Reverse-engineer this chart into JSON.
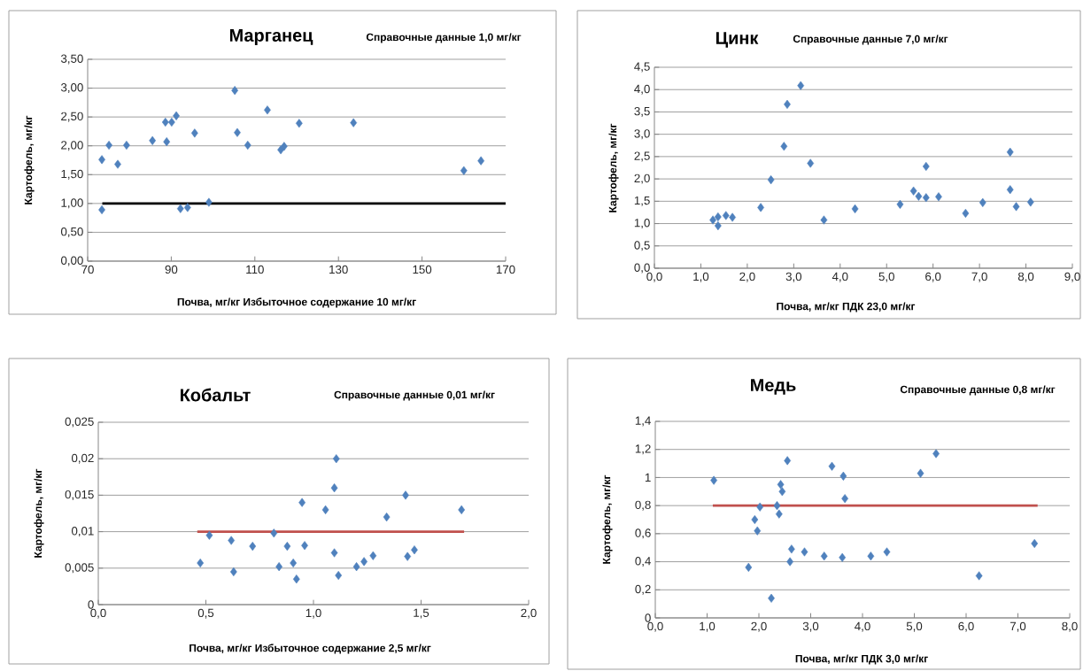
{
  "chart_data": [
    {
      "type": "scatter",
      "title": "Марганец",
      "annotations": [
        "Справочные данные 1,0 мг/кг"
      ],
      "xlabel": "Почва, мг/кг  Избыточное содержание 10 мг/кг",
      "ylabel": "Картофель, мг/кг",
      "xlim": [
        70,
        170
      ],
      "xticks": [
        70,
        90,
        110,
        130,
        150,
        170
      ],
      "ylim": [
        0,
        3.5
      ],
      "yticks": [
        {
          "value": 0,
          "label": "0,00"
        },
        {
          "value": 0.5,
          "label": "0,50"
        },
        {
          "value": 1,
          "label": "1,00"
        },
        {
          "value": 1.5,
          "label": "1,50"
        },
        {
          "value": 2,
          "label": "2,00"
        },
        {
          "value": 2.5,
          "label": "2,50"
        },
        {
          "value": 3,
          "label": "3,00"
        },
        {
          "value": 3.5,
          "label": "3,50"
        }
      ],
      "grid": "y",
      "marker": "diamond",
      "series": [
        {
          "color": "#4f81bd",
          "x": [
            73.4,
            73.4,
            75.1,
            77.2,
            79.3,
            85.5,
            88.6,
            88.9,
            90.1,
            91.2,
            92.2,
            93.9,
            95.6,
            99.0,
            105.2,
            105.8,
            108.3,
            113.0,
            116.2,
            117.0,
            120.6,
            133.6,
            160.0,
            164.1
          ],
          "values": [
            1.76,
            0.89,
            2.01,
            1.68,
            2.01,
            2.09,
            2.41,
            2.07,
            2.41,
            2.52,
            0.91,
            0.93,
            2.22,
            1.02,
            2.96,
            2.23,
            2.01,
            2.62,
            1.93,
            1.99,
            2.39,
            2.4,
            1.57,
            1.74
          ]
        },
        {
          "type": "line",
          "marker": "none",
          "color": "#000000",
          "x": [
            73.5,
            170
          ],
          "values": [
            1.0,
            1.0
          ]
        }
      ]
    },
    {
      "type": "scatter",
      "title": "Цинк",
      "annotations": [
        "Справочные данные 7,0 мг/кг"
      ],
      "xlabel": "Почва, мг/кг     ПДК 23,0  мг/кг",
      "ylabel": "Картофель, мг/кг",
      "xlim": [
        0,
        9
      ],
      "xticks": [
        {
          "value": 0,
          "label": "0,0"
        },
        {
          "value": 1,
          "label": "1,0"
        },
        {
          "value": 2,
          "label": "2,0"
        },
        {
          "value": 3,
          "label": "3,0"
        },
        {
          "value": 4,
          "label": "4,0"
        },
        {
          "value": 5,
          "label": "5,0"
        },
        {
          "value": 6,
          "label": "6,0"
        },
        {
          "value": 7,
          "label": "7,0"
        },
        {
          "value": 8,
          "label": "8,0"
        },
        {
          "value": 9,
          "label": "9,0"
        }
      ],
      "ylim": [
        0,
        4.5
      ],
      "yticks": [
        {
          "value": 0,
          "label": "0,0"
        },
        {
          "value": 0.5,
          "label": "0,5"
        },
        {
          "value": 1,
          "label": "1,0"
        },
        {
          "value": 1.5,
          "label": "1,5"
        },
        {
          "value": 2,
          "label": "2,0"
        },
        {
          "value": 2.5,
          "label": "2,5"
        },
        {
          "value": 3,
          "label": "3,0"
        },
        {
          "value": 3.5,
          "label": "3,5"
        },
        {
          "value": 4,
          "label": "4,0"
        },
        {
          "value": 4.5,
          "label": "4,5"
        }
      ],
      "grid": "y",
      "marker": "diamond",
      "series": [
        {
          "color": "#4f81bd",
          "x": [
            1.26,
            1.37,
            1.37,
            1.54,
            1.68,
            2.29,
            2.51,
            2.79,
            2.86,
            3.15,
            3.36,
            3.65,
            4.32,
            5.29,
            5.58,
            5.69,
            5.85,
            5.85,
            6.12,
            6.7,
            7.07,
            7.66,
            7.66,
            7.79,
            8.1
          ],
          "values": [
            1.08,
            1.15,
            0.95,
            1.18,
            1.14,
            1.36,
            1.98,
            2.73,
            3.67,
            4.09,
            2.35,
            1.08,
            1.33,
            1.43,
            1.73,
            1.61,
            1.58,
            2.28,
            1.6,
            1.23,
            1.47,
            2.6,
            1.76,
            1.38,
            1.48
          ]
        }
      ]
    },
    {
      "type": "scatter",
      "title": "Кобальт",
      "annotations": [
        "Справочные данные 0,01 мг/кг"
      ],
      "xlabel": "Почва, мг/кг   Избыточное содержание 2,5 мг/кг",
      "ylabel": "Картофель, мг/кг",
      "xlim": [
        0,
        2
      ],
      "xticks": [
        {
          "value": 0,
          "label": "0,0"
        },
        {
          "value": 0.5,
          "label": "0,5"
        },
        {
          "value": 1,
          "label": "1,0"
        },
        {
          "value": 1.5,
          "label": "1,5"
        },
        {
          "value": 2,
          "label": "2,0"
        }
      ],
      "ylim": [
        0,
        0.025
      ],
      "yticks": [
        0,
        {
          "value": 0.005,
          "label": "0,005"
        },
        {
          "value": 0.01,
          "label": "0,01"
        },
        {
          "value": 0.015,
          "label": "0,015"
        },
        {
          "value": 0.02,
          "label": "0,02"
        },
        {
          "value": 0.025,
          "label": "0,025"
        }
      ],
      "grid": "y",
      "marker": "diamond",
      "series": [
        {
          "color": "#4f81bd",
          "x": [
            0.474,
            0.516,
            0.629,
            0.618,
            0.717,
            0.816,
            0.84,
            0.878,
            0.906,
            0.921,
            0.947,
            0.959,
            1.056,
            1.097,
            1.106,
            1.097,
            1.116,
            1.2,
            1.235,
            1.277,
            1.34,
            1.428,
            1.437,
            1.469,
            1.688
          ],
          "values": [
            0.0057,
            0.0095,
            0.0045,
            0.0088,
            0.008,
            0.0098,
            0.0052,
            0.008,
            0.0057,
            0.0035,
            0.014,
            0.0081,
            0.013,
            0.016,
            0.02,
            0.0071,
            0.004,
            0.0052,
            0.0059,
            0.0067,
            0.012,
            0.015,
            0.0066,
            0.0075,
            0.013
          ]
        },
        {
          "type": "line",
          "marker": "none",
          "color": "#c0504d",
          "x": [
            0.46,
            1.7
          ],
          "values": [
            0.01,
            0.01
          ]
        }
      ]
    },
    {
      "type": "scatter",
      "title": "Медь",
      "annotations": [
        "Справочные данные 0,8 мг/кг"
      ],
      "xlabel": "Почва, мг/кг        ПДК 3,0 мг/кг",
      "ylabel": "Картофель, мг/кг",
      "xlim": [
        0,
        8
      ],
      "xticks": [
        {
          "value": 0,
          "label": "0,0"
        },
        {
          "value": 1,
          "label": "1,0"
        },
        {
          "value": 2,
          "label": "2,0"
        },
        {
          "value": 3,
          "label": "3,0"
        },
        {
          "value": 4,
          "label": "4,0"
        },
        {
          "value": 5,
          "label": "5,0"
        },
        {
          "value": 6,
          "label": "6,0"
        },
        {
          "value": 7,
          "label": "7,0"
        },
        {
          "value": 8,
          "label": "8,0"
        }
      ],
      "ylim": [
        0,
        1.4
      ],
      "yticks": [
        0,
        {
          "value": 0.2,
          "label": "0,2"
        },
        {
          "value": 0.4,
          "label": "0,4"
        },
        {
          "value": 0.6,
          "label": "0,6"
        },
        {
          "value": 0.8,
          "label": "0,8"
        },
        1,
        {
          "value": 1.2,
          "label": "1,2"
        },
        {
          "value": 1.4,
          "label": "1,4"
        }
      ],
      "grid": "y",
      "marker": "diamond",
      "series": [
        {
          "color": "#4f81bd",
          "x": [
            1.13,
            1.8,
            1.92,
            1.97,
            2.02,
            2.24,
            2.35,
            2.39,
            2.42,
            2.45,
            2.55,
            2.6,
            2.63,
            2.88,
            3.26,
            3.41,
            3.61,
            3.63,
            3.66,
            4.16,
            4.47,
            5.12,
            5.42,
            6.25,
            7.32
          ],
          "values": [
            0.98,
            0.36,
            0.7,
            0.62,
            0.79,
            0.14,
            0.8,
            0.74,
            0.95,
            0.9,
            1.12,
            0.4,
            0.49,
            0.47,
            0.44,
            1.08,
            0.43,
            1.01,
            0.85,
            0.44,
            0.47,
            1.03,
            1.17,
            0.3,
            0.53
          ]
        },
        {
          "type": "line",
          "marker": "none",
          "color": "#c0504d",
          "x": [
            1.11,
            7.38
          ],
          "values": [
            0.8,
            0.8
          ]
        }
      ]
    }
  ]
}
